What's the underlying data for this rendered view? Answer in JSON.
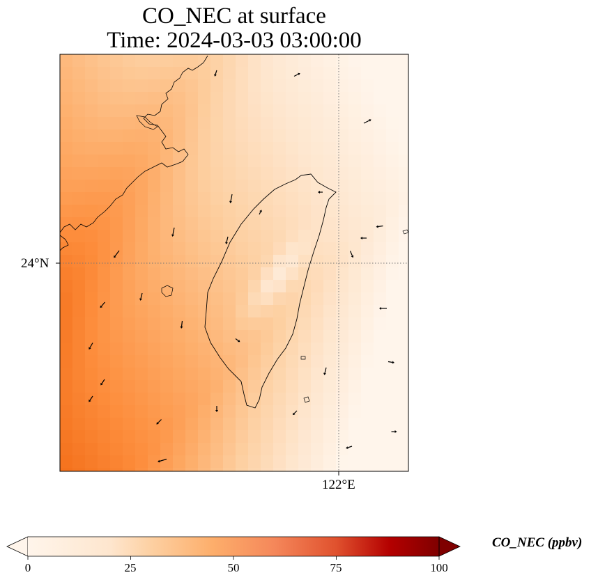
{
  "title": {
    "line1": "CO_NEC at surface",
    "line2": "Time: 2024-03-03 03:00:00"
  },
  "map": {
    "lat_label": "24°N",
    "lon_label": "122°E",
    "gridline_color": "#777777",
    "wind_arrows": 40
  },
  "colorbar": {
    "label": "CO_NEC (ppbv)",
    "ticks": [
      "0",
      "25",
      "50",
      "75",
      "100"
    ],
    "min": 0,
    "max": 100,
    "colormap": [
      "#fff5eb",
      "#fee6ce",
      "#fdd0a2",
      "#fdae6b",
      "#fd8d3c",
      "#f16913",
      "#d94801",
      "#a63603",
      "#7f2704"
    ],
    "extend": "both"
  }
}
